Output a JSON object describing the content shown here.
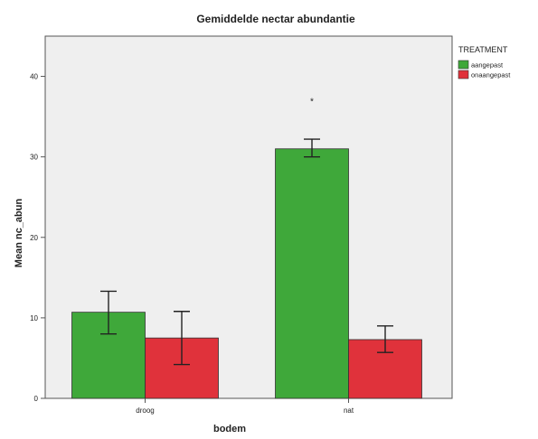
{
  "chart_data": {
    "type": "bar",
    "title": "Gemiddelde nectar abundantie",
    "xlabel": "bodem",
    "ylabel": "Mean nc_abun",
    "categories": [
      "droog",
      "nat"
    ],
    "series": [
      {
        "name": "aangepast",
        "color": "#3fa83a",
        "values": [
          10.7,
          31.0
        ],
        "err_low": [
          8.0,
          30.0
        ],
        "err_high": [
          13.3,
          32.2
        ]
      },
      {
        "name": "onaangepast",
        "color": "#e0323b",
        "values": [
          7.5,
          7.3
        ],
        "err_low": [
          4.2,
          5.7
        ],
        "err_high": [
          10.8,
          9.0
        ]
      }
    ],
    "ylim": [
      0,
      45
    ],
    "yticks": [
      0,
      10,
      20,
      30,
      40
    ],
    "legend": {
      "title": "TREATMENT",
      "placement": "right"
    },
    "annotations": [
      {
        "text": "*",
        "category": "nat",
        "series": "aangepast",
        "y": 37
      }
    ],
    "grid": false
  }
}
